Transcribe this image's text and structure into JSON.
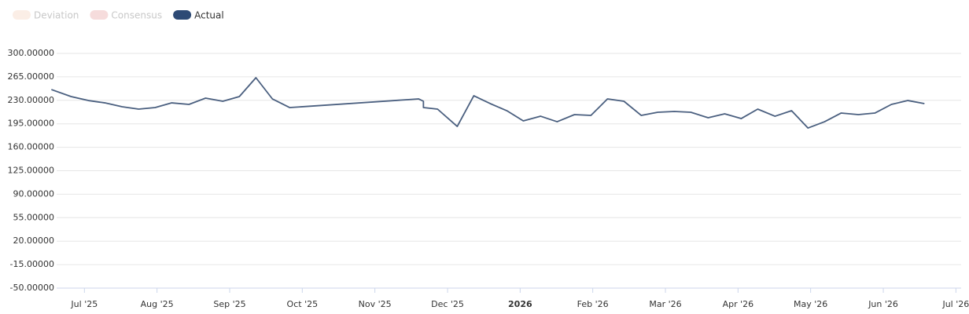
{
  "chart_data": {
    "type": "line",
    "legend_hidden": [
      {
        "name": "Deviation",
        "color": "#fbeee6"
      },
      {
        "name": "Consensus",
        "color": "#f6dcdc"
      }
    ],
    "x": [
      2025.4621,
      2025.4847,
      2025.5045,
      2025.5235,
      2025.5433,
      2025.5623,
      2025.5812,
      2025.6002,
      2025.62,
      2025.639,
      2025.6588,
      2025.6778,
      2025.6968,
      2025.7157,
      2025.7356,
      2025.8836,
      2025.889,
      2025.889,
      2025.9052,
      2025.9278,
      2025.9468,
      2025.9657,
      2025.9847,
      2026.0036,
      2026.0235,
      2026.0424,
      2026.0623,
      2026.0812,
      2026.1002,
      2026.1191,
      2026.139,
      2026.1579,
      2026.1769,
      2026.1958,
      2026.2157,
      2026.2347,
      2026.2536,
      2026.2726,
      2026.2924,
      2026.3114,
      2026.3303,
      2026.3493,
      2026.3682,
      2026.3881,
      2026.407,
      2026.426,
      2026.4449,
      2026.4639
    ],
    "series": [
      {
        "name": "Actual",
        "color": "#2d4a75",
        "line_color": "#4a5f7f",
        "values": [
          246.1,
          235.6,
          229.7,
          226.2,
          220.4,
          216.9,
          219.2,
          226.2,
          223.9,
          233.3,
          228.6,
          235.6,
          263.7,
          232.1,
          219.2,
          232.1,
          228.6,
          219.2,
          216.9,
          191.1,
          236.8,
          225.1,
          214.5,
          199.3,
          206.3,
          198.1,
          208.7,
          207.5,
          232.1,
          228.6,
          207.5,
          212.2,
          213.4,
          212.2,
          204.0,
          209.9,
          202.8,
          216.9,
          206.3,
          214.5,
          188.7,
          198.1,
          211.0,
          208.7,
          211.0,
          223.9,
          229.7,
          225.1
        ]
      }
    ],
    "xlim": [
      2025.46,
      2026.506
    ],
    "xticks": [
      {
        "value": 2025.5,
        "label": "Jul '25"
      },
      {
        "value": 2025.5833,
        "label": "Aug '25"
      },
      {
        "value": 2025.6667,
        "label": "Sep '25"
      },
      {
        "value": 2025.75,
        "label": "Oct '25"
      },
      {
        "value": 2025.8333,
        "label": "Nov '25"
      },
      {
        "value": 2025.9167,
        "label": "Dec '25"
      },
      2026,
      {
        "value": 2026.0833,
        "label": "Feb '26"
      },
      {
        "value": 2026.1667,
        "label": "Mar '26"
      },
      {
        "value": 2026.25,
        "label": "Apr '26"
      },
      {
        "value": 2026.3333,
        "label": "May '26"
      },
      {
        "value": 2026.4167,
        "label": "Jun '26"
      },
      {
        "value": 2026.5,
        "label": "Jul '26"
      }
    ],
    "ylim": [
      -50,
      300
    ],
    "yticks": [
      {
        "value": 300,
        "label": "300.00000"
      },
      {
        "value": 265,
        "label": "265.00000"
      },
      {
        "value": 230,
        "label": "230.00000"
      },
      {
        "value": 195,
        "label": "195.00000"
      },
      {
        "value": 160,
        "label": "160.00000"
      },
      {
        "value": 125,
        "label": "125.00000"
      },
      {
        "value": 90,
        "label": "90.00000"
      },
      {
        "value": 55,
        "label": "55.00000"
      },
      {
        "value": 20,
        "label": "20.00000"
      },
      {
        "value": -15,
        "label": "-15.00000"
      },
      {
        "value": -50,
        "label": "-50.00000"
      }
    ],
    "grid": true
  }
}
